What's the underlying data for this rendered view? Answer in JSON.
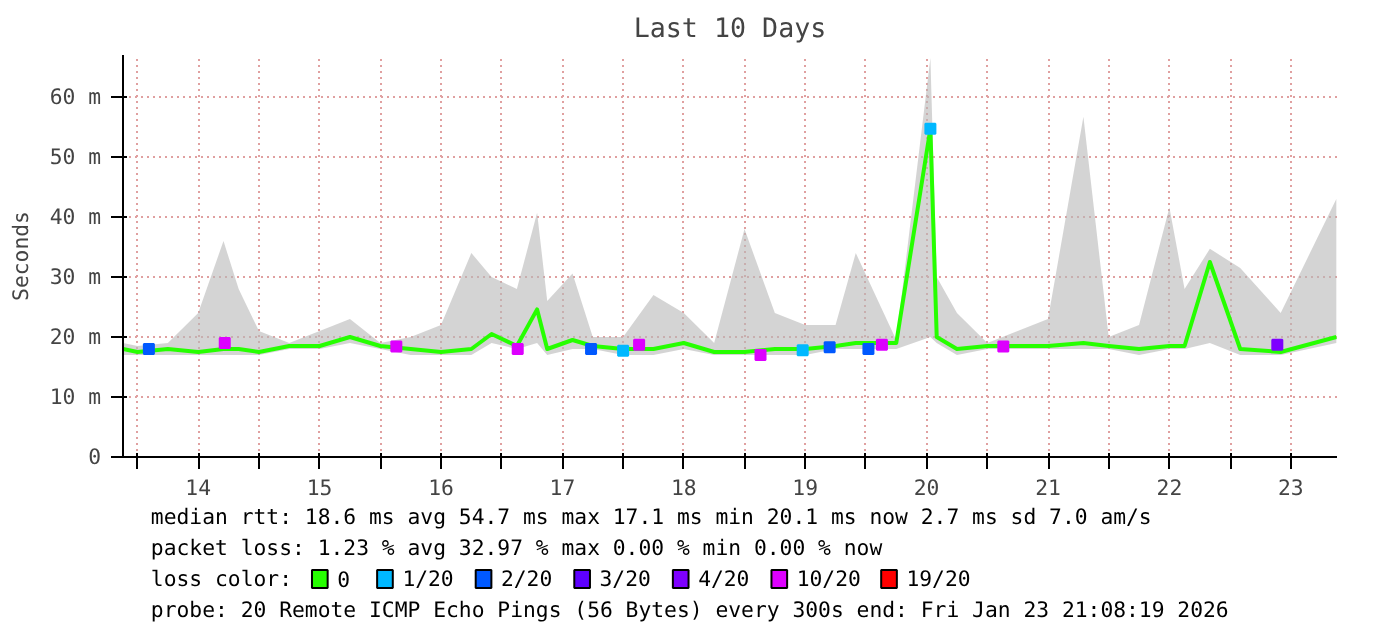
{
  "chart_data": {
    "type": "line",
    "title": "Last 10 Days",
    "ylabel": "Seconds",
    "xlim": [
      "2026-01-13T21:08",
      "2026-01-23T21:08"
    ],
    "xticks": [
      {
        "value": "2026-01-14T00:00",
        "label": null
      },
      {
        "value": "2026-01-14T12:00",
        "label": "14"
      },
      {
        "value": "2026-01-15T00:00",
        "label": null
      },
      {
        "value": "2026-01-15T12:00",
        "label": "15"
      },
      {
        "value": "2026-01-16T00:00",
        "label": null
      },
      {
        "value": "2026-01-16T12:00",
        "label": "16"
      },
      {
        "value": "2026-01-17T00:00",
        "label": null
      },
      {
        "value": "2026-01-17T12:00",
        "label": "17"
      },
      {
        "value": "2026-01-18T00:00",
        "label": null
      },
      {
        "value": "2026-01-18T12:00",
        "label": "18"
      },
      {
        "value": "2026-01-19T00:00",
        "label": null
      },
      {
        "value": "2026-01-19T12:00",
        "label": "19"
      },
      {
        "value": "2026-01-20T00:00",
        "label": null
      },
      {
        "value": "2026-01-20T12:00",
        "label": "20"
      },
      {
        "value": "2026-01-21T00:00",
        "label": null
      },
      {
        "value": "2026-01-21T12:00",
        "label": "21"
      },
      {
        "value": "2026-01-22T00:00",
        "label": null
      },
      {
        "value": "2026-01-22T12:00",
        "label": "22"
      },
      {
        "value": "2026-01-23T00:00",
        "label": null
      },
      {
        "value": "2026-01-23T12:00",
        "label": "23"
      }
    ],
    "ylim": [
      0,
      67
    ],
    "yticks": [
      0,
      {
        "value": 10,
        "label": "10 m"
      },
      {
        "value": 20,
        "label": "20 m"
      },
      {
        "value": 30,
        "label": "30 m"
      },
      {
        "value": 40,
        "label": "40 m"
      },
      {
        "value": 50,
        "label": "50 m"
      },
      {
        "value": 60,
        "label": "60 m"
      }
    ],
    "grid": true,
    "legend": "bottom",
    "legend_title": "loss color:",
    "series": [
      {
        "name": "0",
        "color": "#26ff00",
        "x": [
          "2026-01-13T21:08",
          "2026-01-14T00:00",
          "2026-01-14T06:00",
          "2026-01-14T12:00",
          "2026-01-14T17:00",
          "2026-01-14T20:00",
          "2026-01-15T00:00",
          "2026-01-15T06:00",
          "2026-01-15T12:00",
          "2026-01-15T18:00",
          "2026-01-16T00:00",
          "2026-01-16T06:00",
          "2026-01-16T12:00",
          "2026-01-16T18:00",
          "2026-01-16T22:00",
          "2026-01-17T03:00",
          "2026-01-17T07:00",
          "2026-01-17T09:00",
          "2026-01-17T14:00",
          "2026-01-17T18:00",
          "2026-01-18T00:00",
          "2026-01-18T06:00",
          "2026-01-18T12:00",
          "2026-01-18T18:00",
          "2026-01-19T00:00",
          "2026-01-19T06:00",
          "2026-01-19T12:00",
          "2026-01-19T18:00",
          "2026-01-19T22:00",
          "2026-01-20T06:00",
          "2026-01-20T12:45",
          "2026-01-20T14:00",
          "2026-01-20T18:00",
          "2026-01-21T00:00",
          "2026-01-21T06:00",
          "2026-01-21T12:00",
          "2026-01-21T19:00",
          "2026-01-22T00:00",
          "2026-01-22T06:00",
          "2026-01-22T12:00",
          "2026-01-22T15:00",
          "2026-01-22T20:00",
          "2026-01-23T02:00",
          "2026-01-23T10:00",
          "2026-01-23T21:00"
        ],
        "values": [
          18,
          17.5,
          18,
          17.5,
          18,
          18,
          17.5,
          18.5,
          18.5,
          20,
          18.5,
          18,
          17.5,
          18,
          20.5,
          18.5,
          24.6,
          18,
          19.5,
          18.5,
          18,
          18,
          19,
          17.5,
          17.5,
          18,
          18,
          18.5,
          19,
          19,
          54.7,
          20,
          18,
          18.5,
          18.5,
          18.5,
          19,
          18.5,
          18,
          18.5,
          18.5,
          32.5,
          18,
          17.5,
          20
        ],
        "lower": [
          17,
          17,
          17,
          17,
          17,
          17,
          17,
          18,
          18,
          19,
          18,
          17,
          17,
          17,
          19,
          18,
          19,
          17,
          18,
          18,
          17,
          17,
          18,
          17,
          17,
          17,
          17,
          18,
          18,
          18,
          20,
          19,
          17,
          18,
          18,
          18,
          18,
          18,
          17,
          18,
          18,
          19,
          17,
          17,
          19
        ],
        "upper": [
          19,
          18.5,
          19,
          24,
          36,
          28,
          21,
          19,
          21,
          23,
          19,
          20,
          22,
          34,
          30,
          28,
          40.7,
          26,
          30.6,
          20,
          20,
          27,
          24,
          19,
          38,
          24,
          22,
          22,
          34,
          19.5,
          66.5,
          30,
          24,
          19,
          21,
          23,
          56.7,
          20,
          22,
          41.6,
          28,
          34.7,
          31.5,
          24,
          43
        ]
      },
      {
        "name": "1/20",
        "color": "#00b8ff",
        "type": "scatter",
        "x": [
          "2026-01-18T00:00",
          "2026-01-19T11:30",
          "2026-01-20T12:45"
        ],
        "values": [
          17.7,
          17.8,
          54.7
        ]
      },
      {
        "name": "2/20",
        "color": "#0059ff",
        "type": "scatter",
        "x": [
          "2026-01-14T02:15",
          "2026-01-17T17:40",
          "2026-01-19T16:50",
          "2026-01-20T00:30"
        ],
        "values": [
          18,
          18,
          18.3,
          18
        ]
      },
      {
        "name": "3/20",
        "color": "#5e00ff",
        "type": "scatter"
      },
      {
        "name": "4/20",
        "color": "#7e00ff",
        "type": "scatter",
        "x": [
          "2026-01-23T09:20"
        ],
        "values": [
          18.7
        ]
      },
      {
        "name": "10/20",
        "color": "#dd00ff",
        "type": "scatter",
        "x": [
          "2026-01-14T17:15",
          "2026-01-16T03:10",
          "2026-01-17T03:10",
          "2026-01-18T03:10",
          "2026-01-19T03:10",
          "2026-01-20T03:10",
          "2026-01-21T03:10"
        ],
        "values": [
          19,
          18.4,
          18,
          18.7,
          17,
          18.7,
          18.4
        ]
      },
      {
        "name": "19/20",
        "color": "#ff0000",
        "type": "scatter"
      }
    ],
    "annotations": [
      "median rtt:  18.6 ms avg  54.7 ms max  17.1 ms min  20.1 ms now  2.7 ms sd  7.0   am/s",
      "packet loss: 1.23 % avg  32.97 % max  0.00 % min  0.00 % now",
      "probe:       20 Remote ICMP Echo Pings (56 Bytes) every 300s      end: Fri Jan 23 21:08:19 2026"
    ]
  }
}
